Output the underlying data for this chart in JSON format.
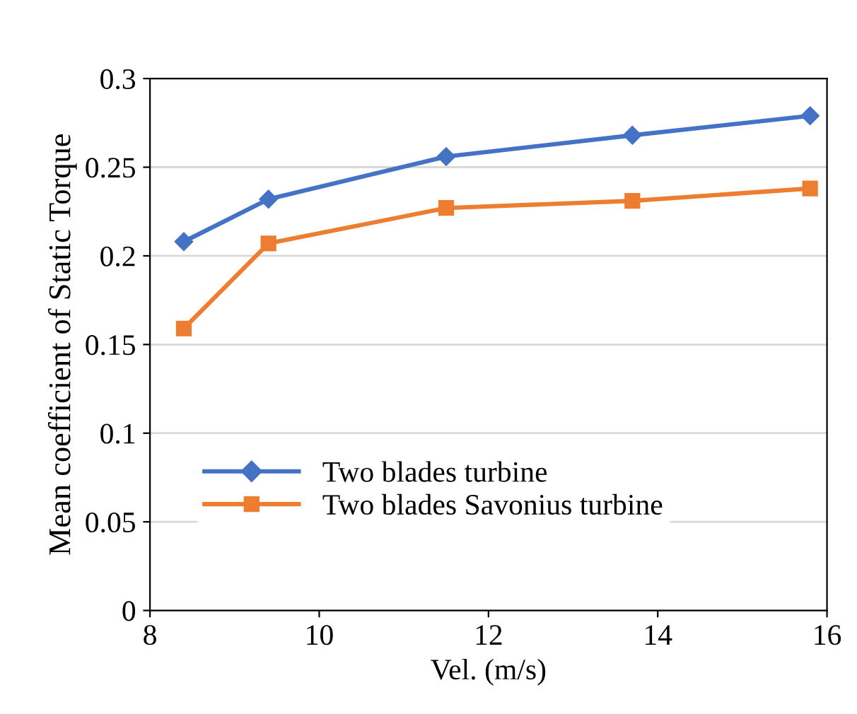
{
  "chart_data": {
    "type": "line",
    "xlabel": "Vel. (m/s)",
    "ylabel": "Mean coefficient of Static Torque",
    "x": [
      8.4,
      9.4,
      11.5,
      13.7,
      15.8
    ],
    "series": [
      {
        "name": "Two blades turbine",
        "color": "#4472c4",
        "marker": "diamond",
        "values": [
          0.208,
          0.232,
          0.256,
          0.268,
          0.279
        ]
      },
      {
        "name": "Two blades Savonius turbine",
        "color": "#ed7d31",
        "marker": "square",
        "values": [
          0.159,
          0.207,
          0.227,
          0.231,
          0.238
        ]
      }
    ],
    "xlim": [
      8,
      16
    ],
    "xticks": [
      8,
      10,
      12,
      14,
      16
    ],
    "ylim": [
      0,
      0.3
    ],
    "yticks": [
      {
        "value": 0,
        "label": "0"
      },
      0.05,
      0.1,
      0.15,
      0.2,
      0.25,
      0.3
    ],
    "grid": "y",
    "legend": "bottom left",
    "line_style": "solid"
  }
}
